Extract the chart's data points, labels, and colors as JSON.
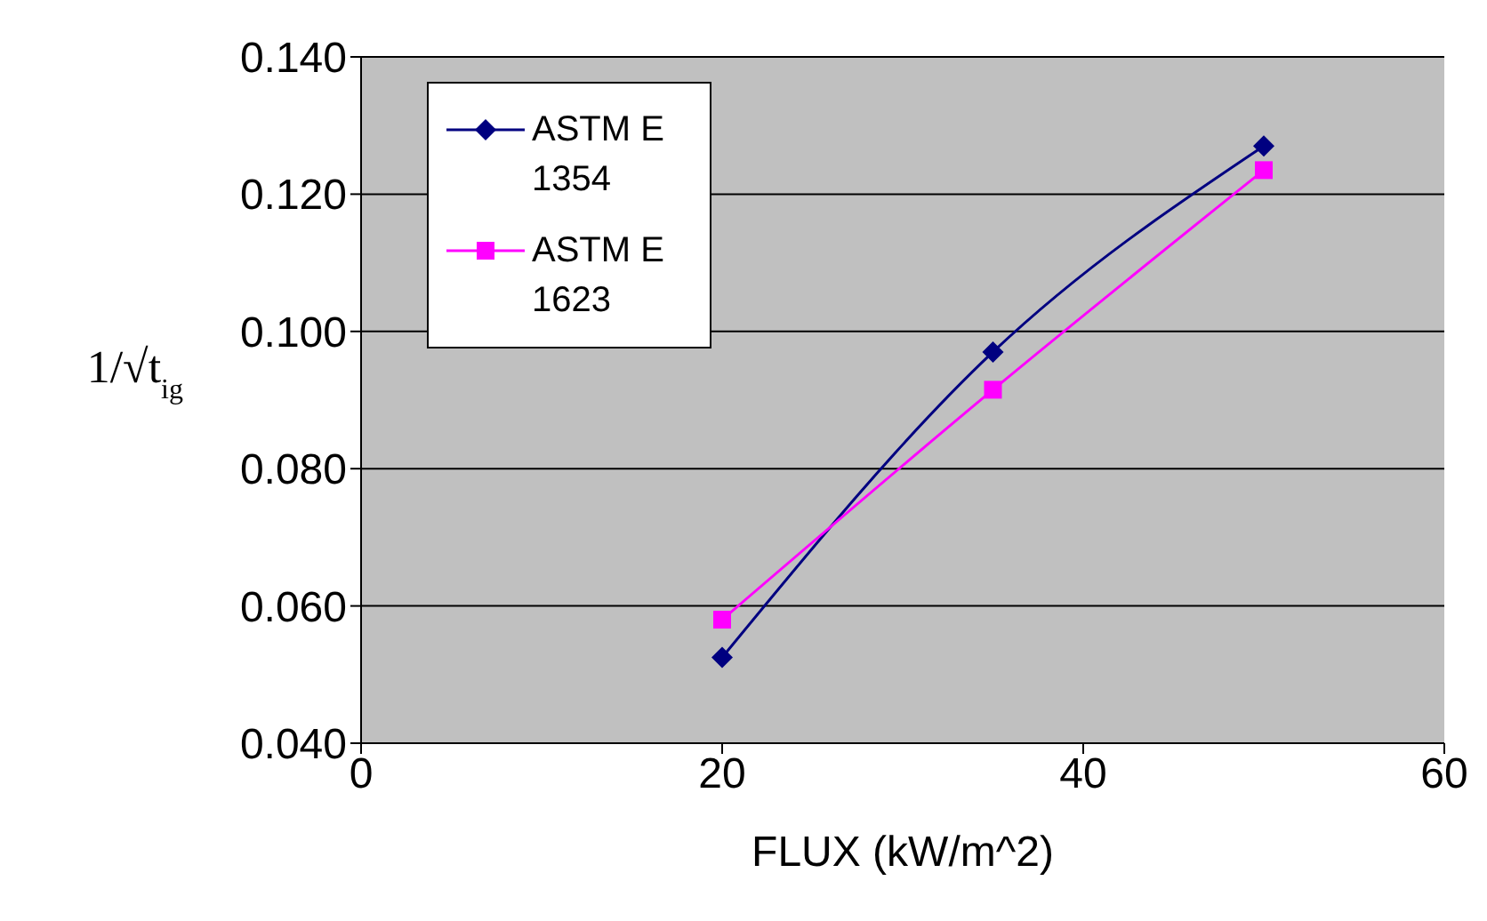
{
  "chart_data": {
    "type": "line",
    "xlabel": "FLUX (kW/m^2)",
    "ylabel": "1/√t$_{ig}$",
    "x": [
      20,
      35,
      50
    ],
    "series": [
      {
        "name": "ASTM E 1354",
        "color": "#000080",
        "values": [
          0.0525,
          0.097,
          0.127
        ],
        "marker": "diamond"
      },
      {
        "name": "ASTM E 1623",
        "color": "#ff00ff",
        "values": [
          0.058,
          0.0915,
          0.1235
        ],
        "marker": "square"
      }
    ],
    "xlim": [
      0,
      60
    ],
    "xticks": [
      0,
      20,
      40,
      60
    ],
    "ylim": [
      0.04,
      0.14
    ],
    "yticks": [
      {
        "value": 0.04,
        "label": "0.040"
      },
      {
        "value": 0.06,
        "label": "0.060"
      },
      {
        "value": 0.08,
        "label": "0.080"
      },
      {
        "value": 0.1,
        "label": "0.100"
      },
      {
        "value": 0.12,
        "label": "0.120"
      },
      {
        "value": 0.14,
        "label": "0.140"
      }
    ],
    "grid": "y",
    "legend": "top left"
  }
}
